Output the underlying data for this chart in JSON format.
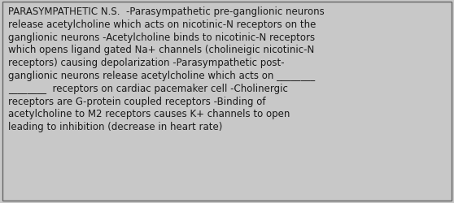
{
  "background_color": "#c8c8c8",
  "border_color": "#666666",
  "text_color": "#1a1a1a",
  "font_size": 8.5,
  "font_family": "DejaVu Sans",
  "text": "PARASYMPATHETIC N.S.  -Parasympathetic pre-ganglionic neurons\nrelease acetylcholine which acts on nicotinic-N receptors on the\nganglionic neurons -Acetylcholine binds to nicotinic-N receptors\nwhich opens ligand gated Na+ channels (cholineigic nicotinic-N\nreceptors) causing depolarization -Parasympathetic post-\nganglionic neurons release acetylcholine which acts on ________\n________  receptors on cardiac pacemaker cell -Cholinergic\nreceptors are G-protein coupled receptors -Binding of\nacetylcholine to M2 receptors causes K+ channels to open\nleading to inhibition (decrease in heart rate)",
  "fig_width": 5.58,
  "fig_height": 2.51,
  "dpi": 100
}
